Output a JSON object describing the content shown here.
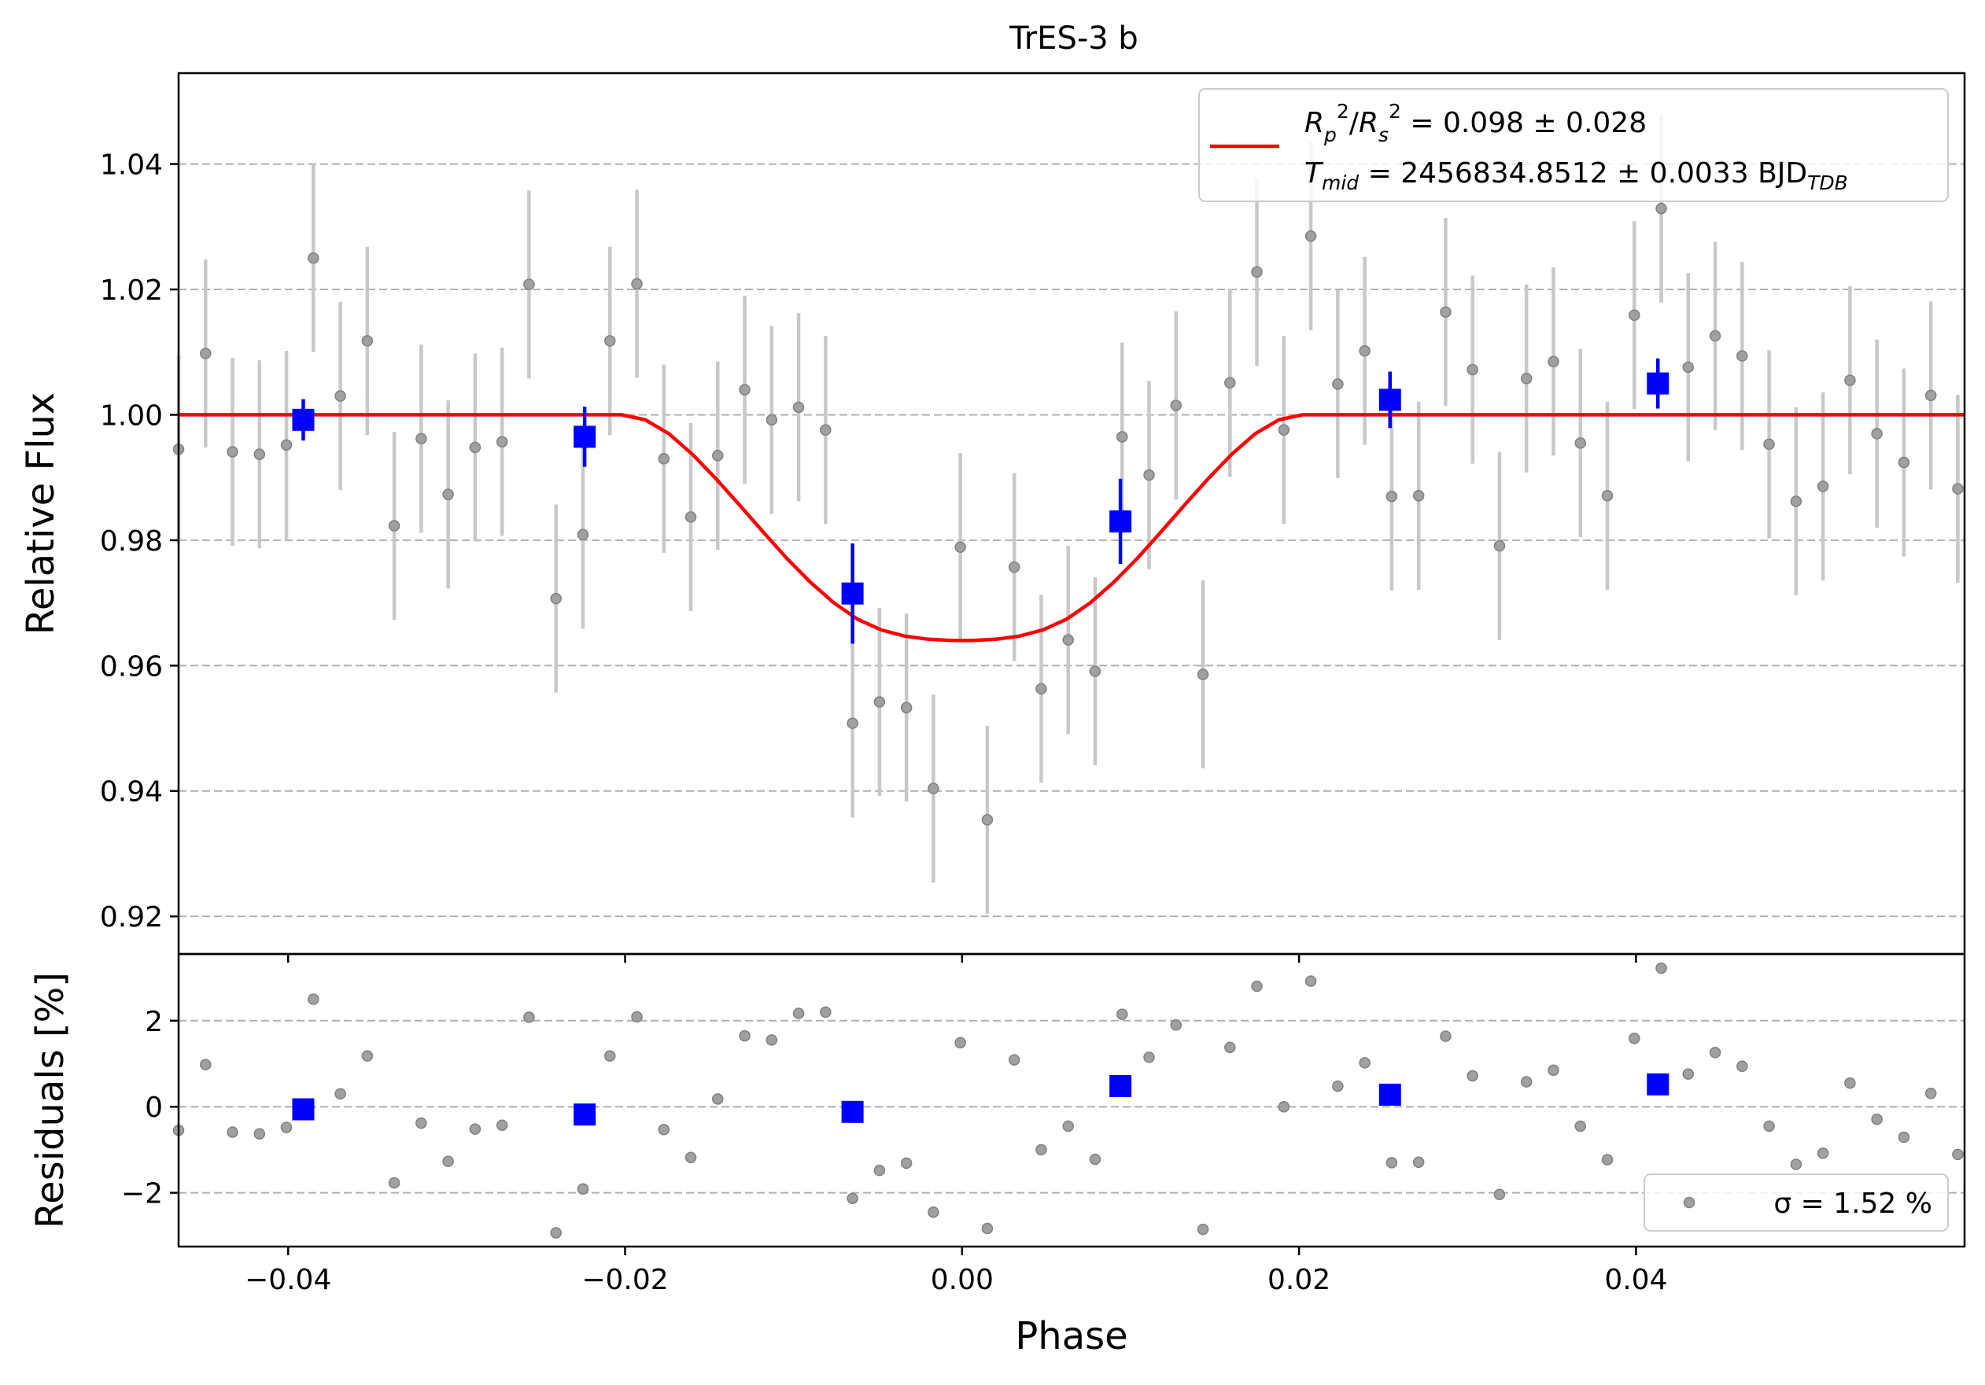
{
  "chart_data": [
    {
      "panel": "main",
      "type": "scatter",
      "title": "TrES-3 b",
      "xlabel": "",
      "ylabel": "Relative Flux",
      "xlim": [
        -0.0465,
        0.0595
      ],
      "ylim": [
        0.914,
        1.0545
      ],
      "x_ticks": [
        -0.04,
        -0.02,
        0.0,
        0.02,
        0.04
      ],
      "y_ticks": [
        0.92,
        0.94,
        0.96,
        0.98,
        1.0,
        1.02,
        1.04
      ],
      "y_tick_labels": [
        "0.92",
        "0.94",
        "0.96",
        "0.98",
        "1.00",
        "1.02",
        "1.04"
      ],
      "grid": "y dashed",
      "legend_placement": "top-right",
      "legend": {
        "model_label_line1": "R_p^2/R_s^2 = 0.098 ± 0.028",
        "model_label_line2": "T_mid = 2456834.8512 ± 0.0033 BJD_TDB"
      },
      "colors": {
        "data": "#808080",
        "error": "#c8c8c8",
        "binned": "#0000ff",
        "model": "#ff0000"
      },
      "series": [
        {
          "kind": "data",
          "error": 0.015,
          "x": [
            -0.0465,
            -0.0449,
            -0.0433,
            -0.0417,
            -0.0401,
            -0.0385,
            -0.0369,
            -0.0353,
            -0.0337,
            -0.0321,
            -0.0305,
            -0.0289,
            -0.0273,
            -0.0257,
            -0.0241,
            -0.0225,
            -0.0209,
            -0.0193,
            -0.0177,
            -0.0161,
            -0.0145,
            -0.0129,
            -0.0113,
            -0.0097,
            -0.0081,
            -0.0065,
            -0.0049,
            -0.0033,
            -0.0017,
            -0.0001,
            0.0015,
            0.0031,
            0.0047,
            0.0063,
            0.0079,
            0.0095,
            0.0111,
            0.0127,
            0.0143,
            0.0159,
            0.0175,
            0.0191,
            0.0207,
            0.0223,
            0.0239,
            0.0255,
            0.0271,
            0.0287,
            0.0303,
            0.0319,
            0.0335,
            0.0351,
            0.0367,
            0.0383,
            0.0399,
            0.0415,
            0.0431,
            0.0447,
            0.0463,
            0.0479,
            0.0495,
            0.0511,
            0.0527,
            0.0543,
            0.0559,
            0.0575,
            0.0591
          ],
          "y": [
            0.9945,
            1.0098,
            0.9941,
            0.9937,
            0.9952,
            1.025,
            1.003,
            1.0118,
            0.9823,
            0.9962,
            0.9873,
            0.9948,
            0.9957,
            1.0208,
            0.9707,
            0.9809,
            1.0118,
            1.0209,
            0.993,
            0.9837,
            0.9935,
            1.004,
            0.9992,
            1.0012,
            0.9976,
            0.9508,
            0.9542,
            0.9533,
            0.9404,
            0.9789,
            0.9354,
            0.9757,
            0.9563,
            0.9641,
            0.9591,
            0.9965,
            0.9904,
            1.0015,
            0.9586,
            1.0051,
            1.0228,
            0.9976,
            1.0285,
            1.0049,
            1.0102,
            0.987,
            0.9871,
            1.0164,
            1.0072,
            0.9791,
            1.0058,
            1.0085,
            0.9955,
            0.9871,
            1.0159,
            1.0329,
            1.0076,
            1.0126,
            1.0094,
            0.9953,
            0.9862,
            0.9886,
            1.0055,
            0.997,
            0.9924,
            1.0031,
            0.9882
          ]
        },
        {
          "kind": "binned",
          "x": [
            -0.0391,
            -0.0224,
            -0.0065,
            0.0094,
            0.0254,
            0.0413
          ],
          "y": [
            0.9992,
            0.9965,
            0.9715,
            0.983,
            1.0024,
            1.005
          ],
          "yerr": [
            0.0033,
            0.0048,
            0.008,
            0.0068,
            0.0045,
            0.004
          ]
        },
        {
          "kind": "model",
          "x": [
            -0.0465,
            -0.0202,
            -0.0188,
            -0.0174,
            -0.016,
            -0.0146,
            -0.0132,
            -0.0118,
            -0.0104,
            -0.009,
            -0.0076,
            -0.0062,
            -0.0048,
            -0.0034,
            -0.002,
            -0.0006,
            0.0,
            0.0006,
            0.002,
            0.0034,
            0.0048,
            0.0062,
            0.0076,
            0.009,
            0.0104,
            0.0118,
            0.0132,
            0.0146,
            0.016,
            0.0174,
            0.0188,
            0.0202,
            0.0595
          ],
          "y": [
            1.0,
            1.0,
            0.9992,
            0.997,
            0.9937,
            0.9898,
            0.9856,
            0.9813,
            0.9771,
            0.9733,
            0.97,
            0.9674,
            0.9657,
            0.9647,
            0.9642,
            0.964,
            0.964,
            0.964,
            0.9642,
            0.9647,
            0.9657,
            0.9674,
            0.97,
            0.9733,
            0.9771,
            0.9813,
            0.9856,
            0.9898,
            0.9937,
            0.997,
            0.9992,
            1.0,
            1.0
          ]
        }
      ]
    },
    {
      "panel": "residuals",
      "type": "scatter",
      "xlabel": "Phase",
      "ylabel": "Residuals [%]",
      "xlim": [
        -0.0465,
        0.0595
      ],
      "ylim": [
        -3.25,
        3.55
      ],
      "x_ticks": [
        -0.04,
        -0.02,
        0.0,
        0.02,
        0.04
      ],
      "x_tick_labels": [
        "−0.04",
        "−0.02",
        "0.00",
        "0.02",
        "0.04"
      ],
      "y_ticks": [
        -2,
        0,
        2
      ],
      "y_tick_labels": [
        "−2",
        "0",
        "2"
      ],
      "grid": "y dashed",
      "legend_placement": "bottom-right",
      "legend": {
        "label": "σ = 1.52 %"
      },
      "series": [
        {
          "kind": "residuals",
          "x": [
            -0.0465,
            -0.0449,
            -0.0433,
            -0.0417,
            -0.0401,
            -0.0385,
            -0.0369,
            -0.0353,
            -0.0337,
            -0.0321,
            -0.0305,
            -0.0289,
            -0.0273,
            -0.0257,
            -0.0241,
            -0.0225,
            -0.0209,
            -0.0193,
            -0.0177,
            -0.0161,
            -0.0145,
            -0.0129,
            -0.0113,
            -0.0097,
            -0.0081,
            -0.0065,
            -0.0049,
            -0.0033,
            -0.0017,
            -0.0001,
            0.0015,
            0.0031,
            0.0047,
            0.0063,
            0.0079,
            0.0095,
            0.0111,
            0.0127,
            0.0143,
            0.0159,
            0.0175,
            0.0191,
            0.0207,
            0.0223,
            0.0239,
            0.0255,
            0.0271,
            0.0287,
            0.0303,
            0.0319,
            0.0335,
            0.0351,
            0.0367,
            0.0383,
            0.0399,
            0.0415,
            0.0431,
            0.0447,
            0.0463,
            0.0479,
            0.0495,
            0.0511,
            0.0527,
            0.0543,
            0.0559,
            0.0575,
            0.0591
          ],
          "y": [
            -0.55,
            0.98,
            -0.59,
            -0.63,
            -0.48,
            2.5,
            0.3,
            1.18,
            -1.77,
            -0.38,
            -1.27,
            -0.52,
            -0.43,
            2.08,
            -2.93,
            -1.91,
            1.18,
            2.09,
            -0.53,
            -1.18,
            0.18,
            1.65,
            1.55,
            2.17,
            2.2,
            -2.13,
            -1.48,
            -1.31,
            -2.45,
            1.49,
            -2.83,
            1.09,
            -1.0,
            -0.45,
            -1.22,
            2.15,
            1.15,
            1.9,
            -2.85,
            1.38,
            2.8,
            0.0,
            2.92,
            0.48,
            1.02,
            -1.3,
            -1.29,
            1.64,
            0.72,
            -2.04,
            0.58,
            0.85,
            -0.45,
            -1.23,
            1.59,
            3.22,
            0.76,
            1.26,
            0.94,
            -0.45,
            -1.34,
            -1.08,
            0.55,
            -0.29,
            -0.71,
            0.31,
            -1.11
          ]
        },
        {
          "kind": "binned",
          "x": [
            -0.0391,
            -0.0224,
            -0.0065,
            0.0094,
            0.0254,
            0.0413
          ],
          "y": [
            -0.06,
            -0.18,
            -0.12,
            0.48,
            0.28,
            0.52
          ]
        }
      ]
    }
  ]
}
